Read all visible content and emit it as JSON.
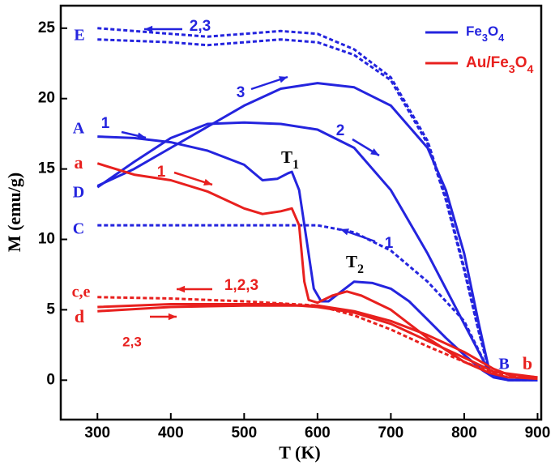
{
  "chart_data": {
    "type": "line",
    "xlabel": "T (K)",
    "ylabel": "M (emu/g)",
    "xlim": [
      250,
      905
    ],
    "ylim": [
      -2.8,
      26.6
    ],
    "xticks": [
      300,
      400,
      500,
      600,
      700,
      800,
      900
    ],
    "yticks": [
      0,
      5,
      10,
      15,
      20,
      25
    ],
    "legend": "upper right",
    "series": [
      {
        "name": "Fe3O4",
        "color": "#2424de",
        "curves": [
          {
            "style": "solid",
            "x": [
              300,
              350,
              400,
              450,
              500,
              525,
              545,
              560,
              565,
              575,
              585,
              595,
              605,
              615,
              630,
              650,
              675,
              700,
              725,
              750,
              775,
              800,
              825,
              840,
              860,
              900
            ],
            "values": [
              17.3,
              17.2,
              16.9,
              16.3,
              15.3,
              14.2,
              14.3,
              14.7,
              14.8,
              13.5,
              10,
              6.5,
              5.6,
              5.6,
              6.2,
              7.0,
              6.9,
              6.5,
              5.6,
              4.3,
              3.0,
              1.8,
              0.7,
              0.2,
              0,
              0
            ]
          },
          {
            "style": "solid",
            "x": [
              300,
              350,
              400,
              450,
              500,
              550,
              600,
              650,
              700,
              750,
              800,
              835,
              860,
              900
            ],
            "values": [
              13.7,
              15.5,
              17.2,
              18.2,
              18.3,
              18.2,
              17.8,
              16.5,
              13.5,
              9,
              4,
              0.5,
              0,
              0
            ]
          },
          {
            "style": "solid",
            "x": [
              300,
              350,
              400,
              450,
              500,
              550,
              600,
              650,
              700,
              750,
              775,
              800,
              820,
              835,
              860,
              900
            ],
            "values": [
              13.8,
              15,
              16.5,
              18,
              19.5,
              20.7,
              21.1,
              20.8,
              19.5,
              16.5,
              13.5,
              9,
              4,
              0.5,
              0,
              0
            ]
          },
          {
            "style": "dotted",
            "x": [
              300,
              400,
              500,
              550,
              600,
              650,
              700,
              750,
              800,
              835,
              860,
              900
            ],
            "values": [
              11,
              11,
              11,
              11,
              11,
              10.5,
              9.2,
              7,
              4.2,
              0.5,
              0,
              0
            ]
          },
          {
            "style": "dotted",
            "x": [
              300,
              400,
              450,
              500,
              550,
              600,
              650,
              700,
              750,
              775,
              800,
              820,
              835,
              860,
              900
            ],
            "values": [
              25,
              24.6,
              24.4,
              24.6,
              24.8,
              24.6,
              23.5,
              21.5,
              17,
              13,
              8,
              3.5,
              0.5,
              0,
              0
            ]
          },
          {
            "style": "dotted",
            "x": [
              300,
              400,
              450,
              500,
              550,
              600,
              650,
              700,
              750,
              775,
              800,
              820,
              835,
              860,
              900
            ],
            "values": [
              24.2,
              24.0,
              23.8,
              24.0,
              24.2,
              24.0,
              23.1,
              21.3,
              16.8,
              12.8,
              7.8,
              3.4,
              0.5,
              0,
              0
            ]
          }
        ]
      },
      {
        "name": "Au/Fe3O4",
        "color": "#e8201e",
        "curves": [
          {
            "style": "solid",
            "x": [
              300,
              350,
              400,
              450,
              500,
              525,
              550,
              565,
              575,
              582,
              588,
              600,
              620,
              640,
              660,
              700,
              750,
              800,
              835,
              860,
              900
            ],
            "values": [
              15.4,
              14.6,
              14.2,
              13.4,
              12.2,
              11.8,
              12.0,
              12.2,
              11,
              7,
              5.7,
              5.5,
              6.0,
              6.3,
              6.0,
              5.0,
              3.0,
              1.3,
              0.5,
              0.2,
              0.2
            ]
          },
          {
            "style": "solid",
            "x": [
              300,
              400,
              500,
              550,
              600,
              650,
              700,
              750,
              800,
              840,
              870,
              900
            ],
            "values": [
              4.9,
              5.2,
              5.3,
              5.3,
              5.3,
              4.9,
              4.2,
              3.2,
              2.0,
              0.8,
              0.2,
              0.1
            ]
          },
          {
            "style": "solid",
            "x": [
              300,
              400,
              500,
              550,
              600,
              650,
              700,
              750,
              800,
              840,
              900
            ],
            "values": [
              5.2,
              5.4,
              5.4,
              5.4,
              5.2,
              4.8,
              4.0,
              2.8,
              1.6,
              0.6,
              0.2
            ]
          },
          {
            "style": "dotted",
            "x": [
              300,
              400,
              500,
              600,
              650,
              700,
              750,
              800,
              840,
              900
            ],
            "values": [
              5.9,
              5.8,
              5.6,
              5.3,
              4.6,
              3.6,
              2.4,
              1.3,
              0.5,
              0.2
            ]
          }
        ]
      }
    ],
    "annotations": [
      {
        "text": "E",
        "color": "#2424de"
      },
      {
        "text": "2,3",
        "color": "#2424de"
      },
      {
        "text": "A",
        "color": "#2424de"
      },
      {
        "text": "1",
        "color": "#2424de"
      },
      {
        "text": "3",
        "color": "#2424de"
      },
      {
        "text": "2",
        "color": "#2424de"
      },
      {
        "text": "a",
        "color": "#e8201e"
      },
      {
        "text": "1",
        "color": "#e8201e"
      },
      {
        "text": "T1",
        "color": "#000000"
      },
      {
        "text": "D",
        "color": "#2424de"
      },
      {
        "text": "C",
        "color": "#2424de"
      },
      {
        "text": "1",
        "color": "#2424de"
      },
      {
        "text": "T2",
        "color": "#000000"
      },
      {
        "text": "c,e",
        "color": "#e8201e"
      },
      {
        "text": "1,2,3",
        "color": "#e8201e"
      },
      {
        "text": "d",
        "color": "#e8201e"
      },
      {
        "text": "2,3",
        "color": "#e8201e"
      },
      {
        "text": "B",
        "color": "#2424de"
      },
      {
        "text": "b",
        "color": "#e8201e"
      }
    ]
  }
}
